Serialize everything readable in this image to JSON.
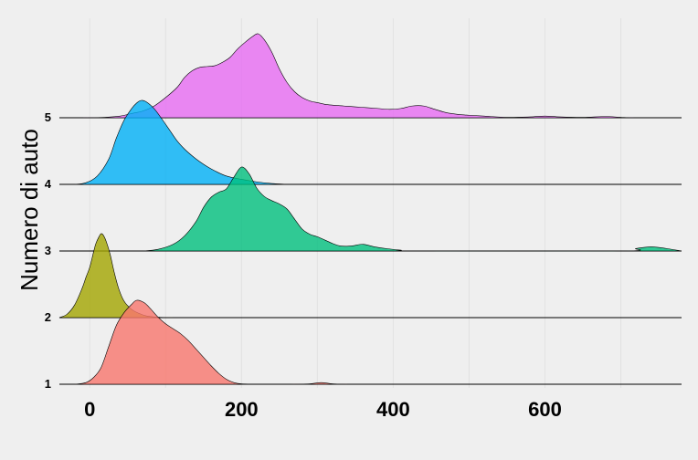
{
  "chart_data": {
    "type": "ridgeline",
    "ylabel": "Numero di auto",
    "xlabel": "",
    "title": "",
    "xlim": [
      -40,
      780
    ],
    "x_ticks": [
      0,
      200,
      400,
      600
    ],
    "y_ticks": [
      "1",
      "2",
      "3",
      "4",
      "5"
    ],
    "grid": true,
    "legend": "none",
    "series": [
      {
        "category": "1",
        "color": "#f8766d",
        "points": [
          [
            -20,
            0
          ],
          [
            -5,
            0.02
          ],
          [
            5,
            0.08
          ],
          [
            15,
            0.2
          ],
          [
            25,
            0.45
          ],
          [
            35,
            0.7
          ],
          [
            45,
            0.85
          ],
          [
            55,
            0.95
          ],
          [
            62,
            1.0
          ],
          [
            72,
            0.97
          ],
          [
            80,
            0.9
          ],
          [
            90,
            0.8
          ],
          [
            100,
            0.72
          ],
          [
            110,
            0.66
          ],
          [
            120,
            0.6
          ],
          [
            130,
            0.52
          ],
          [
            140,
            0.42
          ],
          [
            150,
            0.32
          ],
          [
            160,
            0.22
          ],
          [
            170,
            0.13
          ],
          [
            180,
            0.06
          ],
          [
            190,
            0.02
          ],
          [
            200,
            0.005
          ],
          [
            220,
            0.002
          ],
          [
            260,
            0
          ],
          [
            290,
            0.005
          ],
          [
            305,
            0.02
          ],
          [
            320,
            0.005
          ],
          [
            340,
            0
          ]
        ]
      },
      {
        "category": "2",
        "color": "#a3a500",
        "points": [
          [
            -40,
            0
          ],
          [
            -30,
            0.04
          ],
          [
            -20,
            0.15
          ],
          [
            -10,
            0.35
          ],
          [
            -5,
            0.48
          ],
          [
            0,
            0.6
          ],
          [
            5,
            0.78
          ],
          [
            8,
            0.88
          ],
          [
            12,
            0.96
          ],
          [
            15,
            1.0
          ],
          [
            18,
            0.98
          ],
          [
            22,
            0.9
          ],
          [
            27,
            0.75
          ],
          [
            32,
            0.55
          ],
          [
            38,
            0.35
          ],
          [
            45,
            0.2
          ],
          [
            55,
            0.1
          ],
          [
            65,
            0.05
          ],
          [
            75,
            0.02
          ],
          [
            90,
            0.005
          ],
          [
            110,
            0
          ]
        ]
      },
      {
        "category": "3",
        "color": "#00bf7d",
        "points": [
          [
            70,
            0
          ],
          [
            90,
            0.02
          ],
          [
            110,
            0.08
          ],
          [
            125,
            0.18
          ],
          [
            140,
            0.35
          ],
          [
            150,
            0.52
          ],
          [
            160,
            0.64
          ],
          [
            170,
            0.7
          ],
          [
            180,
            0.74
          ],
          [
            190,
            0.88
          ],
          [
            200,
            1.0
          ],
          [
            210,
            0.92
          ],
          [
            220,
            0.75
          ],
          [
            230,
            0.65
          ],
          [
            240,
            0.6
          ],
          [
            250,
            0.56
          ],
          [
            260,
            0.5
          ],
          [
            270,
            0.38
          ],
          [
            280,
            0.26
          ],
          [
            290,
            0.2
          ],
          [
            300,
            0.17
          ],
          [
            310,
            0.13
          ],
          [
            320,
            0.09
          ],
          [
            330,
            0.06
          ],
          [
            345,
            0.06
          ],
          [
            360,
            0.08
          ],
          [
            375,
            0.05
          ],
          [
            390,
            0.03
          ],
          [
            410,
            0.01
          ],
          [
            430,
            0
          ],
          [
            700,
            0
          ],
          [
            720,
            0.03
          ],
          [
            740,
            0.05
          ],
          [
            760,
            0.03
          ],
          [
            780,
            0
          ]
        ]
      },
      {
        "category": "4",
        "color": "#00b0f6",
        "points": [
          [
            -20,
            0
          ],
          [
            -5,
            0.02
          ],
          [
            10,
            0.1
          ],
          [
            25,
            0.3
          ],
          [
            35,
            0.55
          ],
          [
            45,
            0.76
          ],
          [
            55,
            0.9
          ],
          [
            62,
            0.97
          ],
          [
            68,
            1.0
          ],
          [
            75,
            0.98
          ],
          [
            85,
            0.9
          ],
          [
            95,
            0.78
          ],
          [
            105,
            0.65
          ],
          [
            115,
            0.52
          ],
          [
            125,
            0.42
          ],
          [
            135,
            0.34
          ],
          [
            145,
            0.27
          ],
          [
            155,
            0.21
          ],
          [
            165,
            0.16
          ],
          [
            180,
            0.1
          ],
          [
            200,
            0.06
          ],
          [
            220,
            0.03
          ],
          [
            240,
            0.01
          ],
          [
            260,
            0
          ]
        ]
      },
      {
        "category": "5",
        "color": "#e76bf3",
        "points": [
          [
            -10,
            0
          ],
          [
            20,
            0.005
          ],
          [
            40,
            0.02
          ],
          [
            55,
            0.05
          ],
          [
            70,
            0.08
          ],
          [
            85,
            0.14
          ],
          [
            100,
            0.24
          ],
          [
            115,
            0.36
          ],
          [
            125,
            0.48
          ],
          [
            135,
            0.56
          ],
          [
            145,
            0.6
          ],
          [
            155,
            0.61
          ],
          [
            165,
            0.62
          ],
          [
            175,
            0.66
          ],
          [
            185,
            0.72
          ],
          [
            195,
            0.82
          ],
          [
            205,
            0.9
          ],
          [
            215,
            0.97
          ],
          [
            222,
            1.0
          ],
          [
            230,
            0.93
          ],
          [
            240,
            0.78
          ],
          [
            250,
            0.58
          ],
          [
            260,
            0.42
          ],
          [
            270,
            0.31
          ],
          [
            280,
            0.24
          ],
          [
            290,
            0.2
          ],
          [
            300,
            0.18
          ],
          [
            310,
            0.16
          ],
          [
            320,
            0.15
          ],
          [
            335,
            0.14
          ],
          [
            350,
            0.13
          ],
          [
            365,
            0.12
          ],
          [
            380,
            0.11
          ],
          [
            395,
            0.1
          ],
          [
            410,
            0.11
          ],
          [
            425,
            0.14
          ],
          [
            440,
            0.14
          ],
          [
            455,
            0.1
          ],
          [
            470,
            0.06
          ],
          [
            485,
            0.04
          ],
          [
            500,
            0.03
          ],
          [
            520,
            0.02
          ],
          [
            550,
            0.005
          ],
          [
            580,
            0.01
          ],
          [
            600,
            0.02
          ],
          [
            620,
            0.01
          ],
          [
            650,
            0.005
          ],
          [
            680,
            0.015
          ],
          [
            700,
            0.005
          ],
          [
            720,
            0
          ],
          [
            780,
            0
          ]
        ]
      }
    ]
  }
}
